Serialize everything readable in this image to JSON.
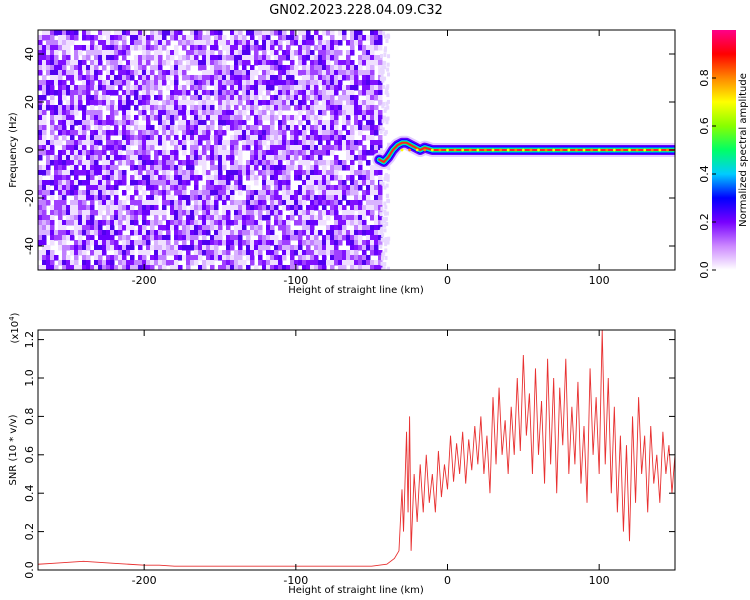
{
  "figure": {
    "title": "GN02.2023.228.04.09.C32"
  },
  "chart_data": [
    {
      "type": "heatmap",
      "xlabel": "Height of straight line (km)",
      "ylabel": "Frequency (Hz)",
      "xlim": [
        -270,
        150
      ],
      "ylim": [
        -50,
        50
      ],
      "xticks": [
        -200,
        -100,
        0,
        100
      ],
      "yticks": [
        -40,
        -20,
        0,
        20,
        40
      ],
      "noise_region": [
        -270,
        -45
      ],
      "signal_ridge": {
        "x": [
          -45,
          -42,
          -39,
          -36,
          -33,
          -30,
          -27,
          -24,
          -21,
          -18,
          -15,
          -10,
          0,
          20,
          50,
          100,
          150
        ],
        "y": [
          -4,
          -5,
          -3,
          0,
          2,
          3,
          3,
          2,
          1,
          0,
          1,
          0,
          0,
          0,
          0,
          0,
          0
        ]
      },
      "colorbar": {
        "label": "Normalized spectral amplitude",
        "range": [
          0,
          1
        ],
        "ticks": [
          "0.0",
          "0.2",
          "0.4",
          "0.6",
          "0.8"
        ],
        "colors": [
          "#ffffff",
          "#cc88ff",
          "#7700ff",
          "#0000ff",
          "#00ccff",
          "#00ff66",
          "#88ff00",
          "#ffff00",
          "#ff8800",
          "#ff0000",
          "#ff0088"
        ]
      }
    },
    {
      "type": "line",
      "xlabel": "Height of straight line (km)",
      "ylabel": "SNR (10 * v/v)",
      "multiplier": "(x10",
      "multiplier_exp": "4",
      "multiplier_close": ")",
      "xlim": [
        -270,
        150
      ],
      "ylim": [
        0,
        1.25
      ],
      "xticks": [
        -200,
        -100,
        0,
        100
      ],
      "yticks": [
        "0.0",
        "0.2",
        "0.4",
        "0.6",
        "0.8",
        "1.0",
        "1.2"
      ],
      "ytick_values": [
        0,
        0.2,
        0.4,
        0.6,
        0.8,
        1.0,
        1.2
      ],
      "line_color": "#e83030",
      "series": [
        {
          "x": [
            -270,
            -260,
            -250,
            -240,
            -230,
            -220,
            -210,
            -200,
            -190,
            -180,
            -170,
            -160,
            -150,
            -140,
            -130,
            -120,
            -110,
            -100,
            -90,
            -80,
            -70,
            -60,
            -50,
            -40,
            -35,
            -32,
            -30,
            -29,
            -27,
            -26,
            -25,
            -24,
            -22,
            -20,
            -18,
            -16,
            -14,
            -12,
            -10,
            -8,
            -6,
            -4,
            -2,
            0,
            2,
            4,
            6,
            8,
            10,
            12,
            14,
            16,
            18,
            20,
            22,
            24,
            26,
            28,
            30,
            32,
            34,
            36,
            38,
            40,
            42,
            44,
            46,
            48,
            50,
            52,
            54,
            56,
            58,
            60,
            62,
            64,
            66,
            68,
            70,
            72,
            74,
            76,
            78,
            80,
            82,
            84,
            86,
            88,
            90,
            92,
            94,
            96,
            98,
            100,
            102,
            104,
            106,
            108,
            110,
            112,
            114,
            116,
            118,
            120,
            122,
            124,
            126,
            128,
            130,
            132,
            134,
            136,
            138,
            140,
            142,
            144,
            146,
            148,
            150
          ],
          "y": [
            0.03,
            0.035,
            0.04,
            0.045,
            0.04,
            0.035,
            0.03,
            0.025,
            0.025,
            0.02,
            0.02,
            0.02,
            0.02,
            0.02,
            0.02,
            0.02,
            0.02,
            0.02,
            0.02,
            0.02,
            0.02,
            0.02,
            0.02,
            0.03,
            0.06,
            0.1,
            0.42,
            0.2,
            0.72,
            0.3,
            0.8,
            0.1,
            0.5,
            0.25,
            0.55,
            0.3,
            0.6,
            0.35,
            0.5,
            0.3,
            0.62,
            0.38,
            0.55,
            0.42,
            0.7,
            0.46,
            0.66,
            0.5,
            0.72,
            0.45,
            0.68,
            0.52,
            0.75,
            0.55,
            0.8,
            0.5,
            0.7,
            0.4,
            0.9,
            0.55,
            0.95,
            0.6,
            0.78,
            0.5,
            0.85,
            0.6,
            1.0,
            0.62,
            1.12,
            0.7,
            0.92,
            0.5,
            1.05,
            0.6,
            0.88,
            0.45,
            1.1,
            0.55,
            1.0,
            0.4,
            0.95,
            0.65,
            1.1,
            0.5,
            0.85,
            0.55,
            0.98,
            0.45,
            0.75,
            0.35,
            1.05,
            0.6,
            0.9,
            0.5,
            1.25,
            0.55,
            1.0,
            0.4,
            0.85,
            0.3,
            0.7,
            0.2,
            0.65,
            0.15,
            0.8,
            0.35,
            0.9,
            0.5,
            0.7,
            0.3,
            0.75,
            0.45,
            0.6,
            0.35,
            0.72,
            0.5,
            0.65,
            0.4,
            0.6
          ]
        }
      ]
    }
  ]
}
